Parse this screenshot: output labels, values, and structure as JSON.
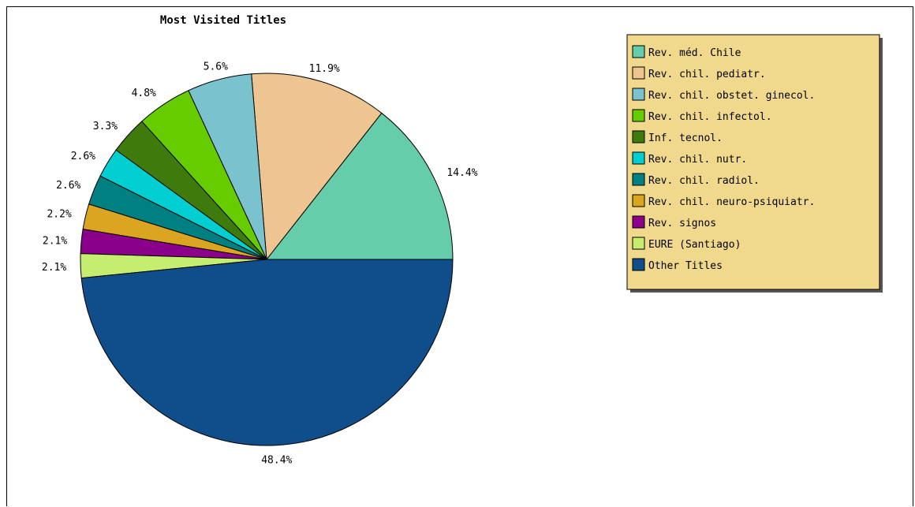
{
  "chart_data": {
    "type": "pie",
    "title": "Most Visited Titles",
    "slices": [
      {
        "label": "Rev. méd. Chile",
        "value": 14.4,
        "display": "14.4%",
        "color": "#66CDAA"
      },
      {
        "label": "Rev. chil. pediatr.",
        "value": 11.9,
        "display": "11.9%",
        "color": "#EEC591"
      },
      {
        "label": "Rev. chil. obstet. ginecol.",
        "value": 5.6,
        "display": "5.6%",
        "color": "#79C2CE"
      },
      {
        "label": "Rev. chil. infectol.",
        "value": 4.8,
        "display": "4.8%",
        "color": "#66CC00"
      },
      {
        "label": "Inf. tecnol.",
        "value": 3.3,
        "display": "3.3%",
        "color": "#3E7B0C"
      },
      {
        "label": "Rev. chil. nutr.",
        "value": 2.6,
        "display": "2.6%",
        "color": "#00CED1"
      },
      {
        "label": "Rev. chil. radiol.",
        "value": 2.6,
        "display": "2.6%",
        "color": "#008080"
      },
      {
        "label": "Rev. chil. neuro-psiquiatr.",
        "value": 2.2,
        "display": "2.2%",
        "color": "#DAA520"
      },
      {
        "label": "Rev. signos",
        "value": 2.1,
        "display": "2.1%",
        "color": "#8B008B"
      },
      {
        "label": "EURE (Santiago)",
        "value": 2.1,
        "display": "2.1%",
        "color": "#C5EE70"
      },
      {
        "label": "Other Titles",
        "value": 48.4,
        "display": "48.4%",
        "color": "#104E8B"
      }
    ],
    "legend_position": "top-right",
    "legend_background": "#F0D98C"
  }
}
